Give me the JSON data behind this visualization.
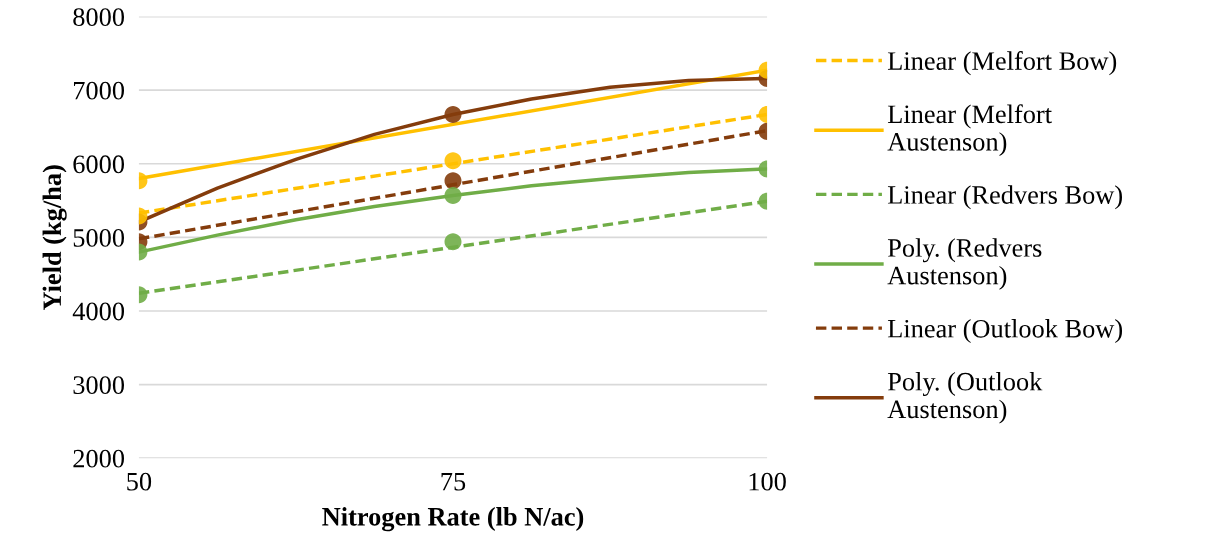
{
  "chart_data": {
    "type": "line",
    "xlabel": "Nitrogen Rate (lb N/ac)",
    "ylabel": "Yield (kg/ha)",
    "xlim": [
      50,
      100
    ],
    "xticks": [
      50,
      75,
      100
    ],
    "ylim": [
      2000,
      8000
    ],
    "yticks": [
      2000,
      3000,
      4000,
      5000,
      6000,
      7000,
      8000
    ],
    "grid": "y",
    "legend": "right",
    "x": [
      50,
      75,
      100
    ],
    "series": [
      {
        "type": "scatter",
        "color": "#ffc000",
        "marker": "circle",
        "values": [
          5290,
          6040,
          6670
        ]
      },
      {
        "type": "scatter",
        "color": "#ffc000",
        "marker": "circle",
        "values": [
          5770,
          null,
          7270
        ]
      },
      {
        "type": "scatter",
        "color": "#70ad47",
        "marker": "circle",
        "values": [
          4220,
          4940,
          5490
        ]
      },
      {
        "type": "scatter",
        "color": "#70ad47",
        "marker": "circle",
        "values": [
          4800,
          5570,
          5930
        ]
      },
      {
        "type": "scatter",
        "color": "#843c0c",
        "marker": "circle",
        "values": [
          4940,
          5770,
          6440
        ]
      },
      {
        "type": "scatter",
        "color": "#843c0c",
        "marker": "circle",
        "values": [
          5210,
          6670,
          7160
        ]
      },
      {
        "name": "Linear (Melfort Bow)",
        "color": "#ffc000",
        "line_style": "dashed",
        "x": [
          50,
          100
        ],
        "values": [
          5330,
          6670
        ]
      },
      {
        "name": "Linear (Melfort\nAustenson)",
        "color": "#ffc000",
        "line_style": "solid",
        "x": [
          50,
          100
        ],
        "values": [
          5800,
          7270
        ]
      },
      {
        "name": "Linear (Redvers Bow)",
        "color": "#70ad47",
        "line_style": "dashed",
        "x": [
          50,
          100
        ],
        "values": [
          4240,
          5490
        ]
      },
      {
        "name": "Poly. (Redvers\nAustenson)",
        "color": "#70ad47",
        "line_style": "solid",
        "x": [
          50,
          56.25,
          62.5,
          68.75,
          75,
          81.25,
          87.5,
          93.75,
          100
        ],
        "values": [
          4800,
          5030,
          5240,
          5420,
          5570,
          5700,
          5800,
          5880,
          5930
        ]
      },
      {
        "name": "Linear (Outlook Bow)",
        "color": "#843c0c",
        "line_style": "dashed",
        "x": [
          50,
          100
        ],
        "values": [
          4980,
          6450
        ]
      },
      {
        "name": "Poly. (Outlook\nAustenson)",
        "color": "#843c0c",
        "line_style": "solid",
        "x": [
          50,
          56.25,
          62.5,
          68.75,
          75,
          81.25,
          87.5,
          93.75,
          100
        ],
        "values": [
          5210,
          5670,
          6060,
          6400,
          6670,
          6880,
          7040,
          7130,
          7160
        ]
      }
    ]
  }
}
